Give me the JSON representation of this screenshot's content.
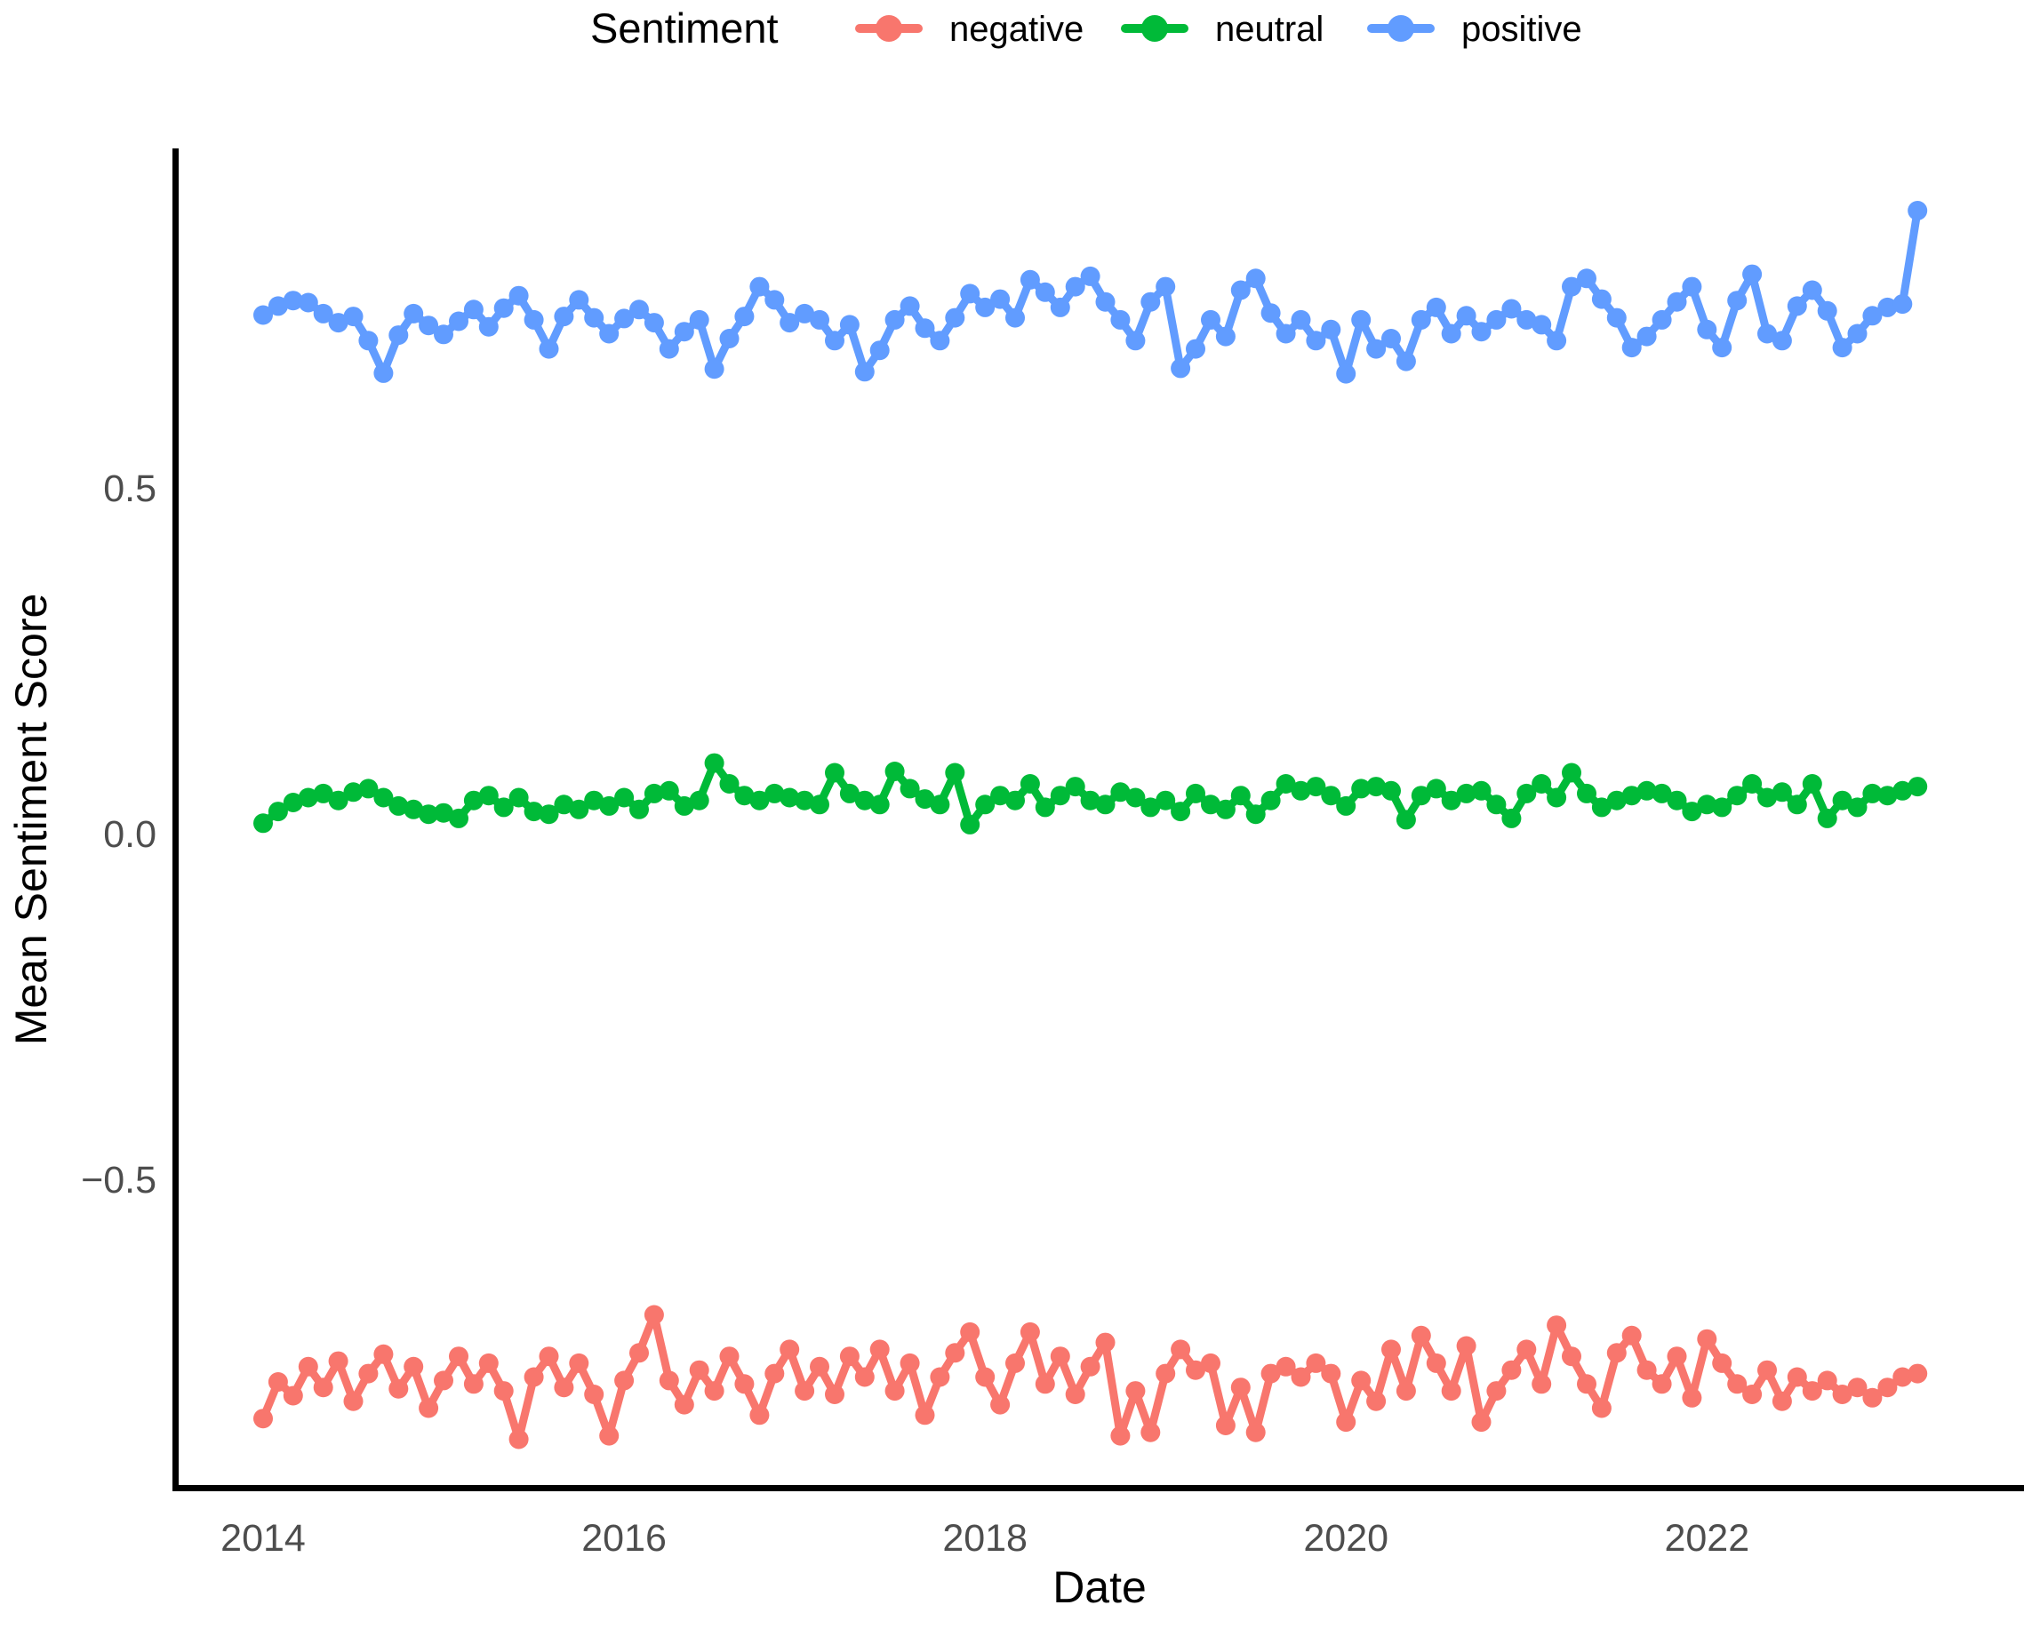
{
  "legend": {
    "title": "Sentiment",
    "items": [
      {
        "label": "negative",
        "color": "#F8766D"
      },
      {
        "label": "neutral",
        "color": "#00BA38"
      },
      {
        "label": "positive",
        "color": "#619CFF"
      }
    ]
  },
  "axes": {
    "tick_color": "#4D4D4D",
    "axis_line_color": "#000000"
  },
  "chart_data": {
    "type": "line",
    "title": "",
    "xlabel": "Date",
    "ylabel": "Mean Sentiment Score",
    "x_unit": "month",
    "legend_position": "top",
    "grid": false,
    "ylim": [
      -0.99,
      0.99
    ],
    "y_ticks": [
      {
        "label": "0.5",
        "value": 0.5
      },
      {
        "label": "0.0",
        "value": 0.0
      },
      {
        "label": "−0.5",
        "value": -0.5
      }
    ],
    "x_ticks": [
      {
        "label": "2014",
        "year": 2014
      },
      {
        "label": "2016",
        "year": 2016
      },
      {
        "label": "2018",
        "year": 2018
      },
      {
        "label": "2020",
        "year": 2020
      },
      {
        "label": "2022",
        "year": 2022
      }
    ],
    "x": [
      "2014-01",
      "2014-02",
      "2014-03",
      "2014-04",
      "2014-05",
      "2014-06",
      "2014-07",
      "2014-08",
      "2014-09",
      "2014-10",
      "2014-11",
      "2014-12",
      "2015-01",
      "2015-02",
      "2015-03",
      "2015-04",
      "2015-05",
      "2015-06",
      "2015-07",
      "2015-08",
      "2015-09",
      "2015-10",
      "2015-11",
      "2015-12",
      "2016-01",
      "2016-02",
      "2016-03",
      "2016-04",
      "2016-05",
      "2016-06",
      "2016-07",
      "2016-08",
      "2016-09",
      "2016-10",
      "2016-11",
      "2016-12",
      "2017-01",
      "2017-02",
      "2017-03",
      "2017-04",
      "2017-05",
      "2017-06",
      "2017-07",
      "2017-08",
      "2017-09",
      "2017-10",
      "2017-11",
      "2017-12",
      "2018-01",
      "2018-02",
      "2018-03",
      "2018-04",
      "2018-05",
      "2018-06",
      "2018-07",
      "2018-08",
      "2018-09",
      "2018-10",
      "2018-11",
      "2018-12",
      "2019-01",
      "2019-02",
      "2019-03",
      "2019-04",
      "2019-05",
      "2019-06",
      "2019-07",
      "2019-08",
      "2019-09",
      "2019-10",
      "2019-11",
      "2019-12",
      "2020-01",
      "2020-02",
      "2020-03",
      "2020-04",
      "2020-05",
      "2020-06",
      "2020-07",
      "2020-08",
      "2020-09",
      "2020-10",
      "2020-11",
      "2020-12",
      "2021-01",
      "2021-02",
      "2021-03",
      "2021-04",
      "2021-05",
      "2021-06",
      "2021-07",
      "2021-08",
      "2021-09",
      "2021-10",
      "2021-11",
      "2021-12",
      "2022-01",
      "2022-02",
      "2022-03",
      "2022-04",
      "2022-05",
      "2022-06",
      "2022-07",
      "2022-08",
      "2022-09",
      "2022-10",
      "2022-11",
      "2022-12",
      "2023-01",
      "2023-02",
      "2023-03"
    ],
    "series": [
      {
        "name": "negative",
        "color": "#F8766D",
        "values": [
          -0.846,
          -0.793,
          -0.813,
          -0.771,
          -0.801,
          -0.763,
          -0.821,
          -0.781,
          -0.753,
          -0.803,
          -0.771,
          -0.831,
          -0.791,
          -0.756,
          -0.796,
          -0.766,
          -0.806,
          -0.876,
          -0.786,
          -0.756,
          -0.801,
          -0.766,
          -0.811,
          -0.871,
          -0.791,
          -0.751,
          -0.696,
          -0.791,
          -0.826,
          -0.776,
          -0.806,
          -0.756,
          -0.796,
          -0.841,
          -0.781,
          -0.746,
          -0.806,
          -0.771,
          -0.811,
          -0.756,
          -0.786,
          -0.746,
          -0.806,
          -0.766,
          -0.841,
          -0.786,
          -0.751,
          -0.721,
          -0.786,
          -0.826,
          -0.766,
          -0.721,
          -0.796,
          -0.756,
          -0.811,
          -0.771,
          -0.736,
          -0.871,
          -0.806,
          -0.866,
          -0.781,
          -0.746,
          -0.776,
          -0.766,
          -0.856,
          -0.801,
          -0.866,
          -0.781,
          -0.771,
          -0.786,
          -0.766,
          -0.781,
          -0.851,
          -0.791,
          -0.821,
          -0.746,
          -0.806,
          -0.726,
          -0.766,
          -0.806,
          -0.741,
          -0.851,
          -0.806,
          -0.776,
          -0.746,
          -0.796,
          -0.711,
          -0.756,
          -0.796,
          -0.831,
          -0.751,
          -0.726,
          -0.776,
          -0.796,
          -0.756,
          -0.816,
          -0.731,
          -0.766,
          -0.796,
          -0.811,
          -0.776,
          -0.821,
          -0.786,
          -0.806,
          -0.791,
          -0.811,
          -0.801,
          -0.816,
          -0.801,
          -0.786,
          -0.781
        ]
      },
      {
        "name": "neutral",
        "color": "#00BA38",
        "values": [
          0.015,
          0.032,
          0.045,
          0.052,
          0.058,
          0.048,
          0.06,
          0.065,
          0.052,
          0.04,
          0.035,
          0.028,
          0.03,
          0.022,
          0.048,
          0.055,
          0.038,
          0.052,
          0.032,
          0.028,
          0.042,
          0.035,
          0.048,
          0.04,
          0.052,
          0.035,
          0.058,
          0.062,
          0.04,
          0.048,
          0.102,
          0.072,
          0.055,
          0.048,
          0.058,
          0.052,
          0.048,
          0.042,
          0.088,
          0.058,
          0.048,
          0.042,
          0.09,
          0.065,
          0.05,
          0.042,
          0.088,
          0.013,
          0.042,
          0.055,
          0.048,
          0.072,
          0.038,
          0.055,
          0.068,
          0.048,
          0.042,
          0.06,
          0.052,
          0.038,
          0.048,
          0.032,
          0.058,
          0.042,
          0.035,
          0.055,
          0.028,
          0.048,
          0.072,
          0.062,
          0.068,
          0.055,
          0.04,
          0.065,
          0.068,
          0.062,
          0.02,
          0.055,
          0.065,
          0.048,
          0.058,
          0.062,
          0.042,
          0.022,
          0.058,
          0.072,
          0.052,
          0.088,
          0.058,
          0.038,
          0.048,
          0.055,
          0.062,
          0.058,
          0.048,
          0.032,
          0.042,
          0.038,
          0.055,
          0.072,
          0.052,
          0.06,
          0.042,
          0.072,
          0.022,
          0.048,
          0.038,
          0.058,
          0.055,
          0.062,
          0.068
        ]
      },
      {
        "name": "positive",
        "color": "#619CFF",
        "values": [
          0.75,
          0.763,
          0.771,
          0.768,
          0.752,
          0.739,
          0.748,
          0.713,
          0.666,
          0.721,
          0.752,
          0.735,
          0.722,
          0.741,
          0.758,
          0.733,
          0.76,
          0.778,
          0.743,
          0.701,
          0.748,
          0.772,
          0.746,
          0.723,
          0.745,
          0.758,
          0.739,
          0.701,
          0.726,
          0.743,
          0.672,
          0.716,
          0.748,
          0.791,
          0.772,
          0.739,
          0.752,
          0.743,
          0.713,
          0.736,
          0.668,
          0.699,
          0.743,
          0.763,
          0.731,
          0.713,
          0.746,
          0.781,
          0.761,
          0.773,
          0.746,
          0.801,
          0.783,
          0.761,
          0.791,
          0.806,
          0.769,
          0.743,
          0.713,
          0.769,
          0.791,
          0.673,
          0.701,
          0.743,
          0.719,
          0.786,
          0.803,
          0.753,
          0.723,
          0.743,
          0.713,
          0.729,
          0.665,
          0.743,
          0.701,
          0.716,
          0.683,
          0.743,
          0.761,
          0.723,
          0.749,
          0.726,
          0.743,
          0.759,
          0.743,
          0.736,
          0.713,
          0.791,
          0.803,
          0.773,
          0.746,
          0.703,
          0.719,
          0.743,
          0.769,
          0.791,
          0.729,
          0.703,
          0.771,
          0.809,
          0.723,
          0.713,
          0.763,
          0.786,
          0.756,
          0.703,
          0.723,
          0.749,
          0.761,
          0.766,
          0.901
        ]
      }
    ]
  }
}
